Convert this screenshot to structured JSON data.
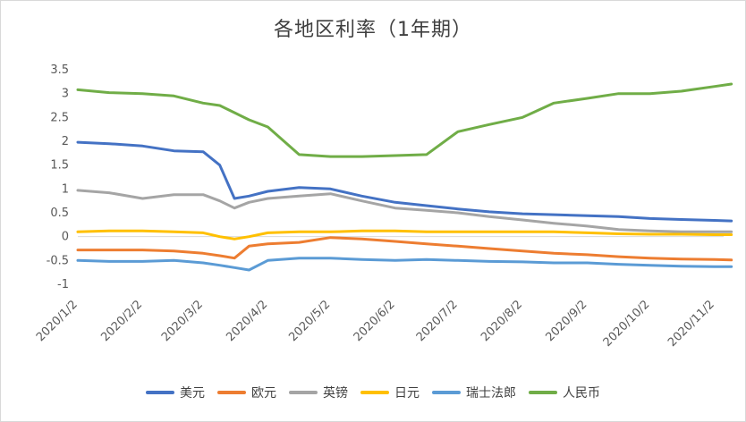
{
  "chart_data": {
    "type": "line",
    "title": "各地区利率（1年期）",
    "ylim": [
      -1,
      3.5
    ],
    "yticks": [
      "3.5",
      "3",
      "2.5",
      "2",
      "1.5",
      "1",
      "0.5",
      "0",
      "-0.5",
      "-1"
    ],
    "ytick_values": [
      3.5,
      3,
      2.5,
      2,
      1.5,
      1,
      0.5,
      0,
      -0.5,
      -1
    ],
    "xticks": [
      "2020/1/2",
      "2020/2/2",
      "2020/3/2",
      "2020/4/2",
      "2020/5/2",
      "2020/6/2",
      "2020/7/2",
      "2020/8/2",
      "2020/9/2",
      "2020/10/2",
      "2020/11/2"
    ],
    "x": [
      "2020/1/2",
      "2020/1/17",
      "2020/2/2",
      "2020/2/17",
      "2020/3/2",
      "2020/3/10",
      "2020/3/17",
      "2020/3/24",
      "2020/4/2",
      "2020/4/17",
      "2020/5/2",
      "2020/5/17",
      "2020/6/2",
      "2020/6/17",
      "2020/7/2",
      "2020/7/17",
      "2020/8/2",
      "2020/8/17",
      "2020/9/2",
      "2020/9/17",
      "2020/10/2",
      "2020/10/17",
      "2020/11/2",
      "2020/11/10"
    ],
    "series": [
      {
        "name": "美元",
        "color": "#4472c4",
        "values": [
          1.98,
          1.95,
          1.9,
          1.8,
          1.78,
          1.5,
          0.8,
          0.85,
          0.95,
          1.03,
          1.0,
          0.85,
          0.72,
          0.65,
          0.58,
          0.52,
          0.48,
          0.46,
          0.44,
          0.42,
          0.38,
          0.36,
          0.34,
          0.33
        ]
      },
      {
        "name": "欧元",
        "color": "#ed7d31",
        "values": [
          -0.28,
          -0.28,
          -0.28,
          -0.3,
          -0.35,
          -0.4,
          -0.45,
          -0.2,
          -0.15,
          -0.12,
          -0.02,
          -0.05,
          -0.1,
          -0.15,
          -0.2,
          -0.25,
          -0.3,
          -0.35,
          -0.38,
          -0.42,
          -0.45,
          -0.47,
          -0.48,
          -0.49
        ]
      },
      {
        "name": "英镑",
        "color": "#a5a5a5",
        "values": [
          0.97,
          0.92,
          0.8,
          0.88,
          0.88,
          0.75,
          0.6,
          0.72,
          0.8,
          0.85,
          0.9,
          0.75,
          0.6,
          0.55,
          0.5,
          0.42,
          0.35,
          0.28,
          0.22,
          0.15,
          0.12,
          0.1,
          0.1,
          0.1
        ]
      },
      {
        "name": "日元",
        "color": "#ffc000",
        "values": [
          0.1,
          0.12,
          0.12,
          0.1,
          0.08,
          0.0,
          -0.05,
          0.0,
          0.08,
          0.1,
          0.1,
          0.12,
          0.12,
          0.1,
          0.1,
          0.1,
          0.1,
          0.1,
          0.08,
          0.06,
          0.05,
          0.05,
          0.04,
          0.04
        ]
      },
      {
        "name": "瑞士法郎",
        "color": "#5b9bd5",
        "values": [
          -0.5,
          -0.52,
          -0.52,
          -0.5,
          -0.55,
          -0.6,
          -0.65,
          -0.7,
          -0.5,
          -0.45,
          -0.45,
          -0.48,
          -0.5,
          -0.48,
          -0.5,
          -0.52,
          -0.53,
          -0.55,
          -0.55,
          -0.58,
          -0.6,
          -0.62,
          -0.63,
          -0.63
        ]
      },
      {
        "name": "人民币",
        "color": "#70ad47",
        "values": [
          3.08,
          3.02,
          3.0,
          2.95,
          2.8,
          2.75,
          2.6,
          2.45,
          2.3,
          1.72,
          1.68,
          1.68,
          1.7,
          1.72,
          2.2,
          2.35,
          2.5,
          2.8,
          2.9,
          3.0,
          3.0,
          3.05,
          3.15,
          3.2
        ]
      }
    ],
    "legend_position": "bottom",
    "grid": false
  }
}
